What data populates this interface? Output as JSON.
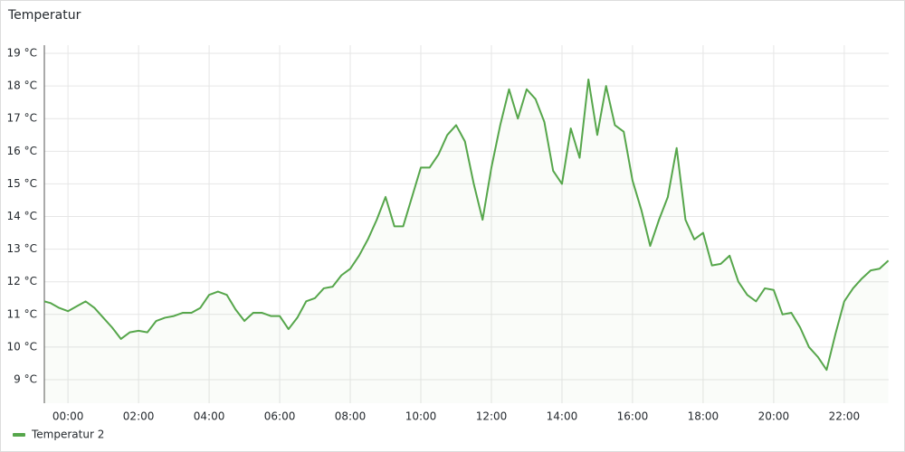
{
  "chart_data": {
    "type": "line",
    "title": "Temperatur",
    "x": [
      -0.67,
      -0.5,
      -0.25,
      0,
      0.25,
      0.5,
      0.75,
      1,
      1.25,
      1.5,
      1.75,
      2,
      2.25,
      2.5,
      2.75,
      3,
      3.25,
      3.5,
      3.75,
      4,
      4.25,
      4.5,
      4.75,
      5,
      5.25,
      5.5,
      5.75,
      6,
      6.25,
      6.5,
      6.75,
      7,
      7.25,
      7.5,
      7.75,
      8,
      8.25,
      8.5,
      8.75,
      9,
      9.25,
      9.5,
      9.75,
      10,
      10.25,
      10.5,
      10.75,
      11,
      11.25,
      11.5,
      11.75,
      12,
      12.25,
      12.5,
      12.75,
      13,
      13.25,
      13.5,
      13.75,
      14,
      14.25,
      14.5,
      14.75,
      15,
      15.25,
      15.5,
      15.75,
      16,
      16.25,
      16.5,
      16.75,
      17,
      17.25,
      17.5,
      17.75,
      18,
      18.25,
      18.5,
      18.75,
      19,
      19.25,
      19.5,
      19.75,
      20,
      20.25,
      20.5,
      20.75,
      21,
      21.25,
      21.5,
      21.75,
      22,
      22.25,
      22.5,
      22.75,
      23,
      23.25
    ],
    "series": [
      {
        "name": "Temperatur 2",
        "color": "#56a64b",
        "values": [
          11.4,
          11.35,
          11.2,
          11.1,
          11.25,
          11.4,
          11.2,
          10.9,
          10.6,
          10.25,
          10.45,
          10.5,
          10.45,
          10.8,
          10.9,
          10.95,
          11.05,
          11.05,
          11.2,
          11.6,
          11.7,
          11.6,
          11.15,
          10.8,
          11.05,
          11.05,
          10.95,
          10.95,
          10.55,
          10.9,
          11.4,
          11.5,
          11.8,
          11.85,
          12.2,
          12.4,
          12.8,
          13.3,
          13.9,
          14.6,
          13.7,
          13.7,
          14.6,
          15.5,
          15.5,
          15.9,
          16.5,
          16.8,
          16.3,
          15.0,
          13.9,
          15.5,
          16.8,
          17.9,
          17.0,
          17.9,
          17.6,
          16.9,
          15.4,
          15.0,
          16.7,
          15.8,
          18.2,
          16.5,
          18.0,
          16.8,
          16.6,
          15.1,
          14.2,
          13.1,
          13.9,
          14.6,
          16.1,
          13.9,
          13.3,
          13.5,
          12.5,
          12.55,
          12.8,
          12.0,
          11.6,
          11.4,
          11.8,
          11.75,
          11.0,
          11.05,
          10.6,
          10.0,
          9.7,
          9.3,
          10.4,
          11.4,
          11.8,
          12.1,
          12.35,
          12.4,
          12.65
        ]
      }
    ],
    "xlim": [
      -0.67,
      23.26
    ],
    "xticks": [
      {
        "value": 0,
        "label": "00:00"
      },
      {
        "value": 2,
        "label": "02:00"
      },
      {
        "value": 4,
        "label": "04:00"
      },
      {
        "value": 6,
        "label": "06:00"
      },
      {
        "value": 8,
        "label": "08:00"
      },
      {
        "value": 10,
        "label": "10:00"
      },
      {
        "value": 12,
        "label": "12:00"
      },
      {
        "value": 14,
        "label": "14:00"
      },
      {
        "value": 16,
        "label": "16:00"
      },
      {
        "value": 18,
        "label": "18:00"
      },
      {
        "value": 20,
        "label": "20:00"
      },
      {
        "value": 22,
        "label": "22:00"
      }
    ],
    "ylim": [
      8.28,
      19.25
    ],
    "yticks": [
      {
        "value": 9,
        "label": "9 °C"
      },
      {
        "value": 10,
        "label": "10 °C"
      },
      {
        "value": 11,
        "label": "11 °C"
      },
      {
        "value": 12,
        "label": "12 °C"
      },
      {
        "value": 13,
        "label": "13 °C"
      },
      {
        "value": 14,
        "label": "14 °C"
      },
      {
        "value": 15,
        "label": "15 °C"
      },
      {
        "value": 16,
        "label": "16 °C"
      },
      {
        "value": 17,
        "label": "17 °C"
      },
      {
        "value": 18,
        "label": "18 °C"
      },
      {
        "value": 19,
        "label": "19 °C"
      }
    ],
    "grid": true,
    "legend": "bottom-left"
  }
}
